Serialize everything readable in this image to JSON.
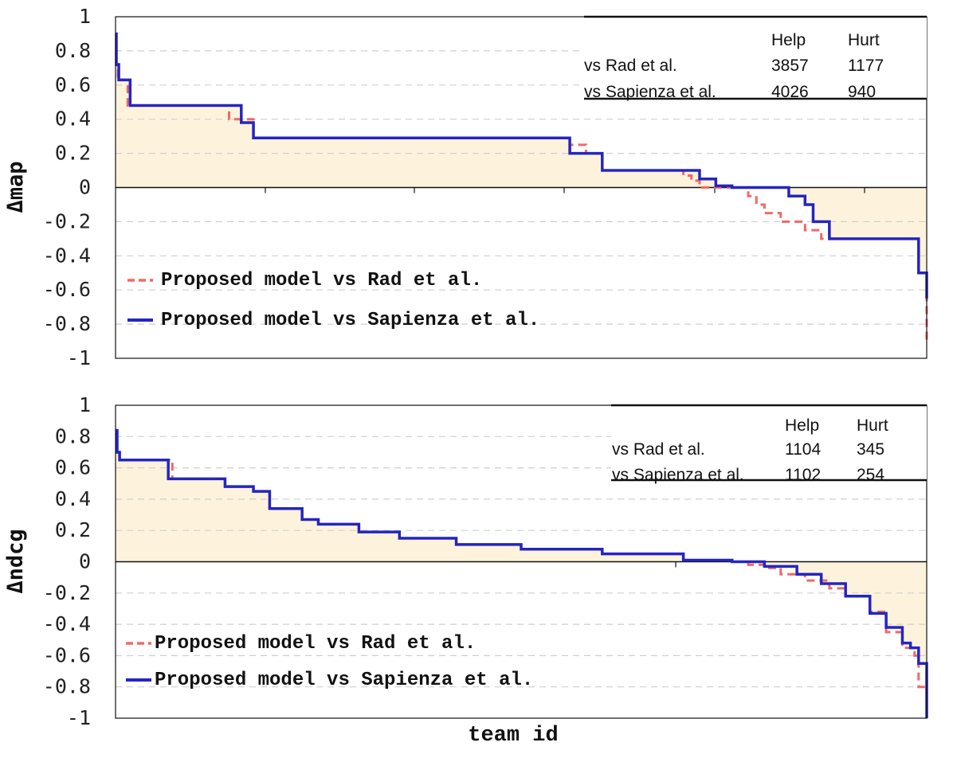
{
  "chart_data": [
    {
      "type": "line",
      "xlabel": "",
      "ylabel": "Δmap",
      "ylim": [
        -1,
        1
      ],
      "yticks": [
        "1",
        "0.8",
        "0.6",
        "0.4",
        "0.2",
        "0",
        "-0.2",
        "-0.4",
        "-0.6",
        "-0.8",
        "-1"
      ],
      "grid": true,
      "fill_color": "#fdf3dc",
      "legend_position": "lower-left",
      "table": {
        "header": [
          "",
          "Help",
          "Hurt"
        ],
        "rows": [
          [
            "vs Rad et al.",
            "3857",
            "1177"
          ],
          [
            "vs Sapienza et al.",
            "4026",
            "940"
          ]
        ]
      },
      "series": [
        {
          "name": "Proposed model vs Rad et al.",
          "color": "#f06a64",
          "dash": true,
          "x": [
            0,
            0.001,
            0.003,
            0.012,
            0.015,
            0.13,
            0.14,
            0.17,
            0.55,
            0.56,
            0.58,
            0.58,
            0.6,
            0.7,
            0.7,
            0.71,
            0.72,
            0.77,
            0.78,
            0.79,
            0.79,
            0.8,
            0.8,
            0.82,
            0.85,
            0.86,
            0.87,
            0.87,
            0.9,
            0.99,
            0.99,
            1.0
          ],
          "y": [
            0.9,
            0.7,
            0.63,
            0.63,
            0.48,
            0.48,
            0.4,
            0.29,
            0.29,
            0.25,
            0.2,
            0.2,
            0.1,
            0.1,
            0.07,
            0.04,
            0.0,
            0.0,
            -0.05,
            -0.1,
            -0.1,
            -0.1,
            -0.15,
            -0.2,
            -0.25,
            -0.25,
            -0.3,
            -0.3,
            -0.3,
            -0.42,
            -0.5,
            -0.9
          ]
        },
        {
          "name": "Proposed model vs Sapienza et al.",
          "color": "#2525c0",
          "dash": false,
          "x": [
            0,
            0.001,
            0.004,
            0.014,
            0.018,
            0.145,
            0.155,
            0.17,
            0.55,
            0.56,
            0.58,
            0.6,
            0.7,
            0.72,
            0.74,
            0.76,
            0.8,
            0.83,
            0.85,
            0.86,
            0.88,
            0.98,
            0.99,
            1.0
          ],
          "y": [
            0.9,
            0.72,
            0.63,
            0.63,
            0.48,
            0.48,
            0.38,
            0.29,
            0.29,
            0.2,
            0.2,
            0.1,
            0.1,
            0.05,
            0.01,
            0.0,
            0.0,
            -0.05,
            -0.1,
            -0.2,
            -0.3,
            -0.3,
            -0.5,
            -0.65
          ]
        }
      ]
    },
    {
      "type": "line",
      "xlabel": "team id",
      "ylabel": "Δndcg",
      "ylim": [
        -1,
        1
      ],
      "yticks": [
        "1",
        "0.8",
        "0.6",
        "0.4",
        "0.2",
        "0",
        "-0.2",
        "-0.4",
        "-0.6",
        "-0.8",
        "-1"
      ],
      "grid": true,
      "fill_color": "#fdf3dc",
      "legend_position": "lower-left",
      "table": {
        "header": [
          "",
          "Help",
          "Hurt"
        ],
        "rows": [
          [
            "vs Rad et al.",
            "1104",
            "345"
          ],
          [
            "vs Sapienza et al.",
            "1102",
            "254"
          ]
        ]
      },
      "series": [
        {
          "name": "Proposed model vs Rad et al.",
          "color": "#f06a64",
          "dash": true,
          "x": [
            0,
            0.002,
            0.005,
            0.06,
            0.07,
            0.13,
            0.135,
            0.17,
            0.19,
            0.23,
            0.25,
            0.3,
            0.35,
            0.42,
            0.5,
            0.6,
            0.7,
            0.76,
            0.78,
            0.8,
            0.82,
            0.85,
            0.88,
            0.9,
            0.93,
            0.95,
            0.97,
            0.985,
            0.99,
            1.0
          ],
          "y": [
            0.84,
            0.7,
            0.65,
            0.65,
            0.53,
            0.53,
            0.48,
            0.45,
            0.34,
            0.27,
            0.24,
            0.19,
            0.15,
            0.11,
            0.08,
            0.05,
            0.01,
            0.0,
            -0.02,
            -0.04,
            -0.08,
            -0.12,
            -0.17,
            -0.22,
            -0.32,
            -0.45,
            -0.55,
            -0.6,
            -0.8,
            -1.0
          ]
        },
        {
          "name": "Proposed model vs Sapienza et al.",
          "color": "#2525c0",
          "dash": false,
          "x": [
            0,
            0.002,
            0.005,
            0.06,
            0.065,
            0.13,
            0.135,
            0.17,
            0.19,
            0.23,
            0.25,
            0.3,
            0.35,
            0.42,
            0.5,
            0.6,
            0.7,
            0.76,
            0.8,
            0.84,
            0.87,
            0.9,
            0.93,
            0.95,
            0.97,
            0.98,
            0.99,
            1.0
          ],
          "y": [
            0.84,
            0.7,
            0.65,
            0.65,
            0.53,
            0.53,
            0.48,
            0.45,
            0.34,
            0.27,
            0.24,
            0.19,
            0.15,
            0.11,
            0.08,
            0.05,
            0.01,
            0.0,
            -0.03,
            -0.08,
            -0.14,
            -0.22,
            -0.33,
            -0.42,
            -0.52,
            -0.55,
            -0.65,
            -1.0
          ]
        }
      ]
    }
  ]
}
